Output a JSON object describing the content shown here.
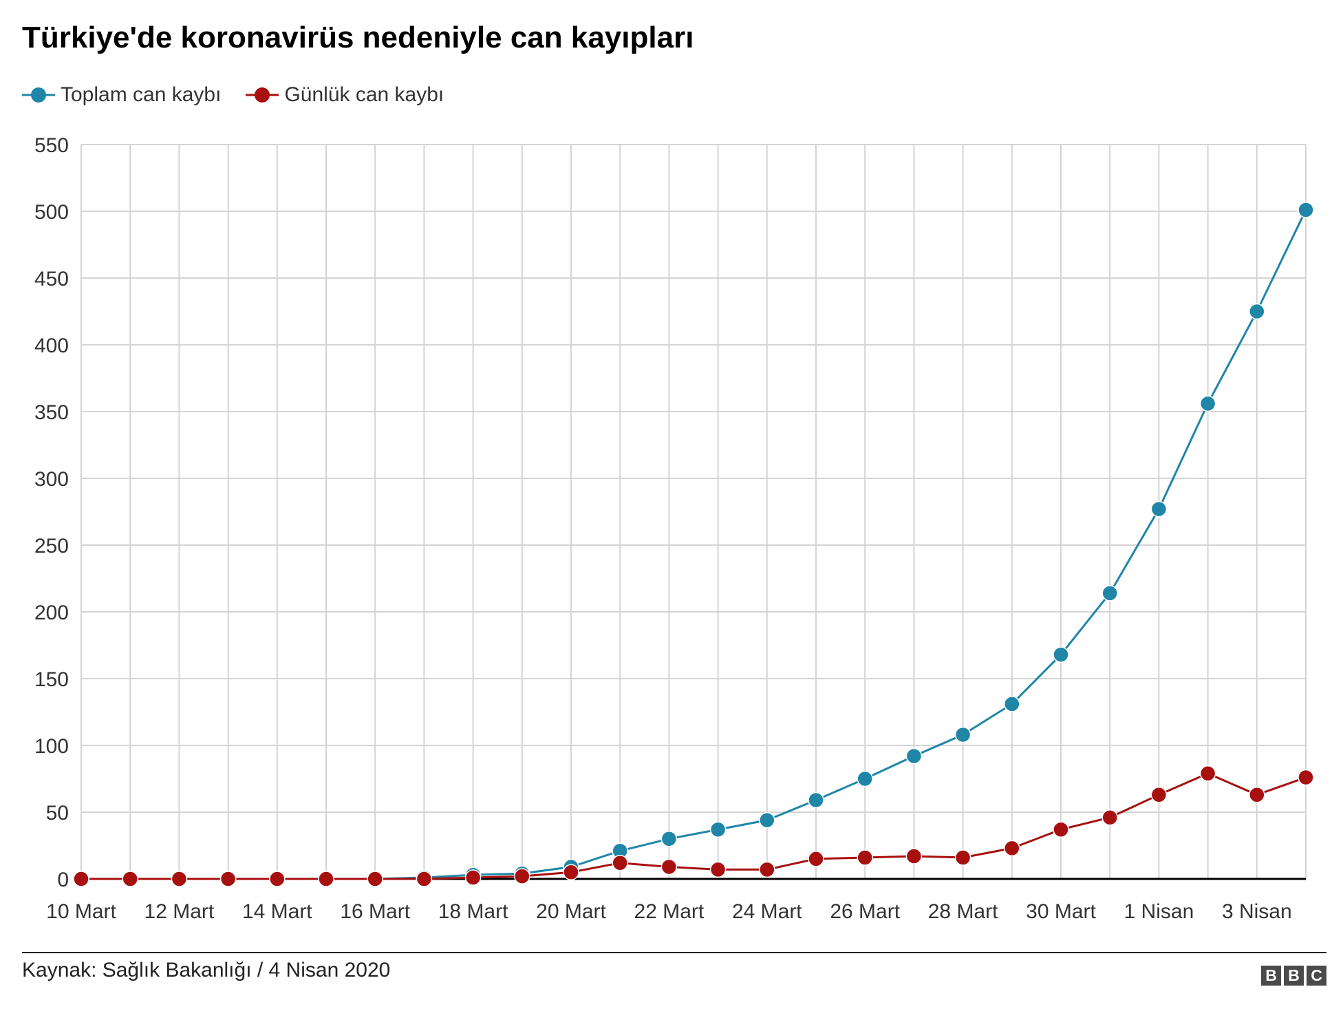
{
  "chart_data": {
    "type": "line",
    "title": "Türkiye'de koronavirüs nedeniyle can kayıpları",
    "x": [
      "10 Mart",
      "11 Mart",
      "12 Mart",
      "13 Mart",
      "14 Mart",
      "15 Mart",
      "16 Mart",
      "17 Mart",
      "18 Mart",
      "19 Mart",
      "20 Mart",
      "21 Mart",
      "22 Mart",
      "23 Mart",
      "24 Mart",
      "25 Mart",
      "26 Mart",
      "27 Mart",
      "28 Mart",
      "29 Mart",
      "30 Mart",
      "31 Mart",
      "1 Nisan",
      "2 Nisan",
      "3 Nisan",
      "4 Nisan"
    ],
    "x_tick_labels": [
      "10 Mart",
      "12 Mart",
      "14 Mart",
      "16 Mart",
      "18 Mart",
      "20 Mart",
      "22 Mart",
      "24 Mart",
      "26 Mart",
      "28 Mart",
      "30 Mart",
      "1 Nisan",
      "3 Nisan"
    ],
    "series": [
      {
        "name": "Toplam can kaybı",
        "color": "#1f86a8",
        "values": [
          0,
          0,
          0,
          0,
          0,
          0,
          0,
          1,
          3,
          4,
          9,
          21,
          30,
          37,
          44,
          59,
          75,
          92,
          108,
          131,
          168,
          214,
          277,
          356,
          425,
          501
        ]
      },
      {
        "name": "Günlük can kaybı",
        "color": "#a80f0f",
        "values": [
          0,
          0,
          0,
          0,
          0,
          0,
          0,
          0,
          1,
          2,
          5,
          12,
          9,
          7,
          7,
          15,
          16,
          17,
          16,
          23,
          37,
          46,
          63,
          79,
          63,
          76
        ]
      }
    ],
    "ylim": [
      0,
      550
    ],
    "y_ticks": [
      0,
      50,
      100,
      150,
      200,
      250,
      300,
      350,
      400,
      450,
      500,
      550
    ],
    "grid": true,
    "legend_position": "top-left"
  },
  "source": "Kaynak: Sağlık Bakanlığı / 4 Nisan 2020",
  "logo": [
    "B",
    "B",
    "C"
  ]
}
